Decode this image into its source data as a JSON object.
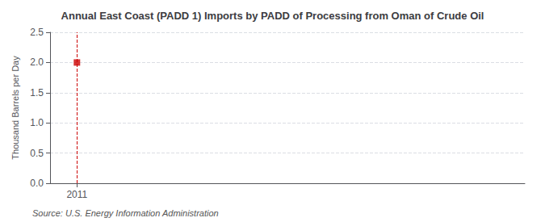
{
  "chart_data": {
    "type": "scatter",
    "title": "Annual East Coast (PADD 1) Imports by PADD of Processing from Oman of Crude Oil",
    "ylabel": "Thousand Barrels per Day",
    "annotation": "Source: U.S. Energy Information Administration",
    "x": [
      2011
    ],
    "values": [
      2.0
    ],
    "color": "#cc0000",
    "marker": "square",
    "xlim": [
      2010.7,
      2016.0
    ],
    "xticks": [
      2011
    ],
    "ylim": [
      0.0,
      2.5
    ],
    "yticks": [
      {
        "value": 0.0,
        "label": "0.0"
      },
      0.5,
      {
        "value": 1.0,
        "label": "1.0"
      },
      1.5,
      {
        "value": 2.0,
        "label": "2.0"
      },
      2.5
    ],
    "grid": true
  }
}
